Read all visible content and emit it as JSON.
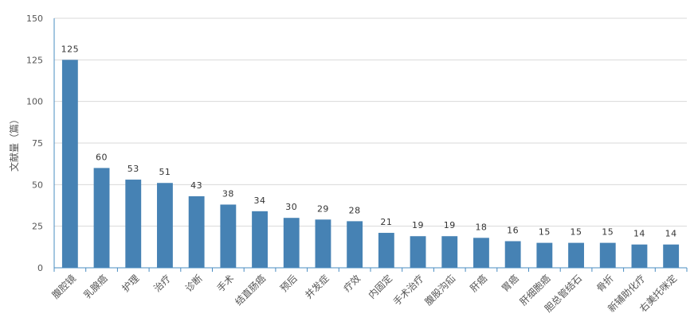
{
  "chart_data": {
    "type": "bar",
    "ylabel": "文献量（篇）",
    "ylim": [
      0,
      150
    ],
    "yticks": [
      0,
      25,
      50,
      75,
      100,
      125,
      150
    ],
    "grid": true,
    "categories": [
      "腹腔镜",
      "乳腺癌",
      "护理",
      "治疗",
      "诊断",
      "手术",
      "结直肠癌",
      "预后",
      "并发症",
      "疗效",
      "内固定",
      "手术治疗",
      "腹股沟疝",
      "肝癌",
      "胃癌",
      "肝细胞癌",
      "胆总管结石",
      "骨折",
      "新辅助化疗",
      "右美托咪定"
    ],
    "values": [
      125,
      60,
      53,
      51,
      43,
      38,
      34,
      30,
      29,
      28,
      21,
      19,
      19,
      18,
      16,
      15,
      15,
      15,
      14,
      14
    ],
    "colors": {
      "bar": "#4682b4",
      "grid": "#d9d9d9",
      "axis": "#4a8cc2"
    }
  }
}
